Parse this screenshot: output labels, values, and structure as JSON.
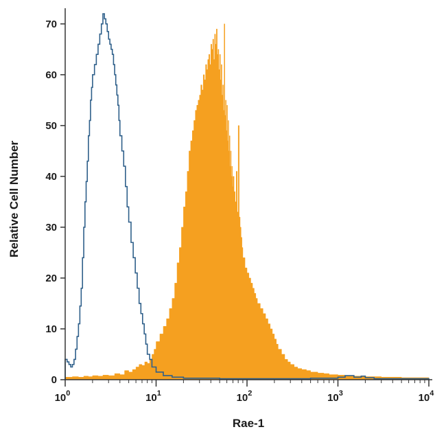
{
  "chart_data": {
    "type": "histogram",
    "xlabel": "Rae-1",
    "ylabel": "Relative Cell Number",
    "xscale": "log",
    "xlim": [
      1,
      10000
    ],
    "ylim": [
      0,
      72
    ],
    "y_ticks": [
      "0",
      "10",
      "20",
      "30",
      "40",
      "50",
      "60",
      "70"
    ],
    "x_ticks": [
      {
        "base": "10",
        "exp": "0"
      },
      {
        "base": "10",
        "exp": "1"
      },
      {
        "base": "10",
        "exp": "2"
      },
      {
        "base": "10",
        "exp": "3"
      },
      {
        "base": "10",
        "exp": "4"
      }
    ],
    "grid": false,
    "series": [
      {
        "style": "filled",
        "color": "#f5a020",
        "x": [
          1.0,
          1.2,
          1.4,
          1.6,
          1.8,
          2.0,
          2.3,
          2.6,
          3.0,
          3.5,
          4.0,
          4.5,
          5.0,
          5.5,
          6.0,
          6.5,
          7.0,
          7.5,
          8.0,
          8.5,
          9.0,
          9.5,
          10,
          11,
          12,
          13,
          14,
          15,
          16,
          17,
          18,
          19,
          20,
          21,
          22,
          23,
          24,
          25,
          26,
          27,
          28,
          29,
          30,
          31,
          32,
          33,
          34,
          35,
          36,
          37,
          38,
          39,
          40,
          41,
          42,
          43,
          44,
          45,
          46,
          47,
          48,
          49,
          50,
          51,
          52,
          53,
          54,
          55,
          56,
          57,
          58,
          59,
          60,
          61,
          62,
          63,
          64,
          65,
          66,
          67,
          68,
          69,
          70,
          72,
          74,
          76,
          78,
          80,
          82,
          84,
          86,
          88,
          90,
          95,
          100,
          105,
          110,
          115,
          120,
          125,
          130,
          140,
          150,
          160,
          170,
          180,
          190,
          200,
          210,
          220,
          240,
          260,
          280,
          300,
          330,
          360,
          400,
          450,
          500,
          600,
          700,
          800,
          900,
          1000,
          1200,
          1500,
          2000,
          3000,
          5000,
          10000
        ],
        "values": [
          0.5,
          0.6,
          0.5,
          0.7,
          0.6,
          0.8,
          0.7,
          0.9,
          0.8,
          1.2,
          1.0,
          1.8,
          1.5,
          2.0,
          2.5,
          3.0,
          2.8,
          3.5,
          3.2,
          4.0,
          5.0,
          6.0,
          7.5,
          9.0,
          10.5,
          12.0,
          14.0,
          16.0,
          19.0,
          23.0,
          26.0,
          30.0,
          34.0,
          37.0,
          41.0,
          45.0,
          47.0,
          49.0,
          51.0,
          53.0,
          54.0,
          55.0,
          56.0,
          58.0,
          57.0,
          60.0,
          59.0,
          62.0,
          61.0,
          63.0,
          64.0,
          62.0,
          66.0,
          65.0,
          67.0,
          63.0,
          68.0,
          66.0,
          69.0,
          64.0,
          65.0,
          61.0,
          64.0,
          59.0,
          62.0,
          56.0,
          58.0,
          53.0,
          70.0,
          52.0,
          55.0,
          49.0,
          54.0,
          47.0,
          51.0,
          45.0,
          48.0,
          42.0,
          45.0,
          40.0,
          42.0,
          38.0,
          40.0,
          37.0,
          35.0,
          41.0,
          33.0,
          50.0,
          32.0,
          30.0,
          28.0,
          26.0,
          24.0,
          22.0,
          21.0,
          20.0,
          19.0,
          18.0,
          17.0,
          16.0,
          15.0,
          14.0,
          13.0,
          12.0,
          11.0,
          10.0,
          9.0,
          8.0,
          7.0,
          6.0,
          5.0,
          4.0,
          3.5,
          3.0,
          2.5,
          2.2,
          2.0,
          1.8,
          1.5,
          1.3,
          1.2,
          1.0,
          1.0,
          0.9,
          0.8,
          0.7,
          0.6,
          0.5,
          0.4,
          0.3
        ]
      },
      {
        "style": "outline",
        "color": "#2e5f8a",
        "x": [
          1.0,
          1.05,
          1.1,
          1.15,
          1.2,
          1.25,
          1.3,
          1.35,
          1.4,
          1.45,
          1.5,
          1.55,
          1.6,
          1.65,
          1.7,
          1.75,
          1.8,
          1.85,
          1.9,
          1.95,
          2.0,
          2.1,
          2.2,
          2.3,
          2.4,
          2.5,
          2.6,
          2.7,
          2.8,
          2.9,
          3.0,
          3.1,
          3.2,
          3.3,
          3.4,
          3.5,
          3.6,
          3.7,
          3.8,
          3.9,
          4.0,
          4.2,
          4.4,
          4.6,
          4.8,
          5.0,
          5.3,
          5.6,
          5.9,
          6.2,
          6.5,
          6.8,
          7.1,
          7.4,
          7.7,
          8.0,
          8.5,
          9.0,
          10,
          12,
          15,
          20,
          50,
          100,
          200,
          500,
          1000,
          1200,
          1500,
          1800,
          2000,
          2500,
          10000
        ],
        "values": [
          4.0,
          3.5,
          3.0,
          2.5,
          3.0,
          4.0,
          6.0,
          8.5,
          11.0,
          14.5,
          18.0,
          24.0,
          30.0,
          35.0,
          39.0,
          43.0,
          48.0,
          51.0,
          55.0,
          57.5,
          60.0,
          62.0,
          64.0,
          66.0,
          68.0,
          70.0,
          72.0,
          71.0,
          70.0,
          68.5,
          67.0,
          66.0,
          65.0,
          64.0,
          62.0,
          60.0,
          58.0,
          56.0,
          54.0,
          51.0,
          48.0,
          45.0,
          42.0,
          38.0,
          34.0,
          31.0,
          27.0,
          24.0,
          21.0,
          18.0,
          15.0,
          13.0,
          11.0,
          9.0,
          7.0,
          5.0,
          4.0,
          2.5,
          1.5,
          0.8,
          0.5,
          0.3,
          0.2,
          0.2,
          0.2,
          0.3,
          0.5,
          0.8,
          0.5,
          0.7,
          0.4,
          0.2,
          0.0
        ]
      }
    ]
  }
}
